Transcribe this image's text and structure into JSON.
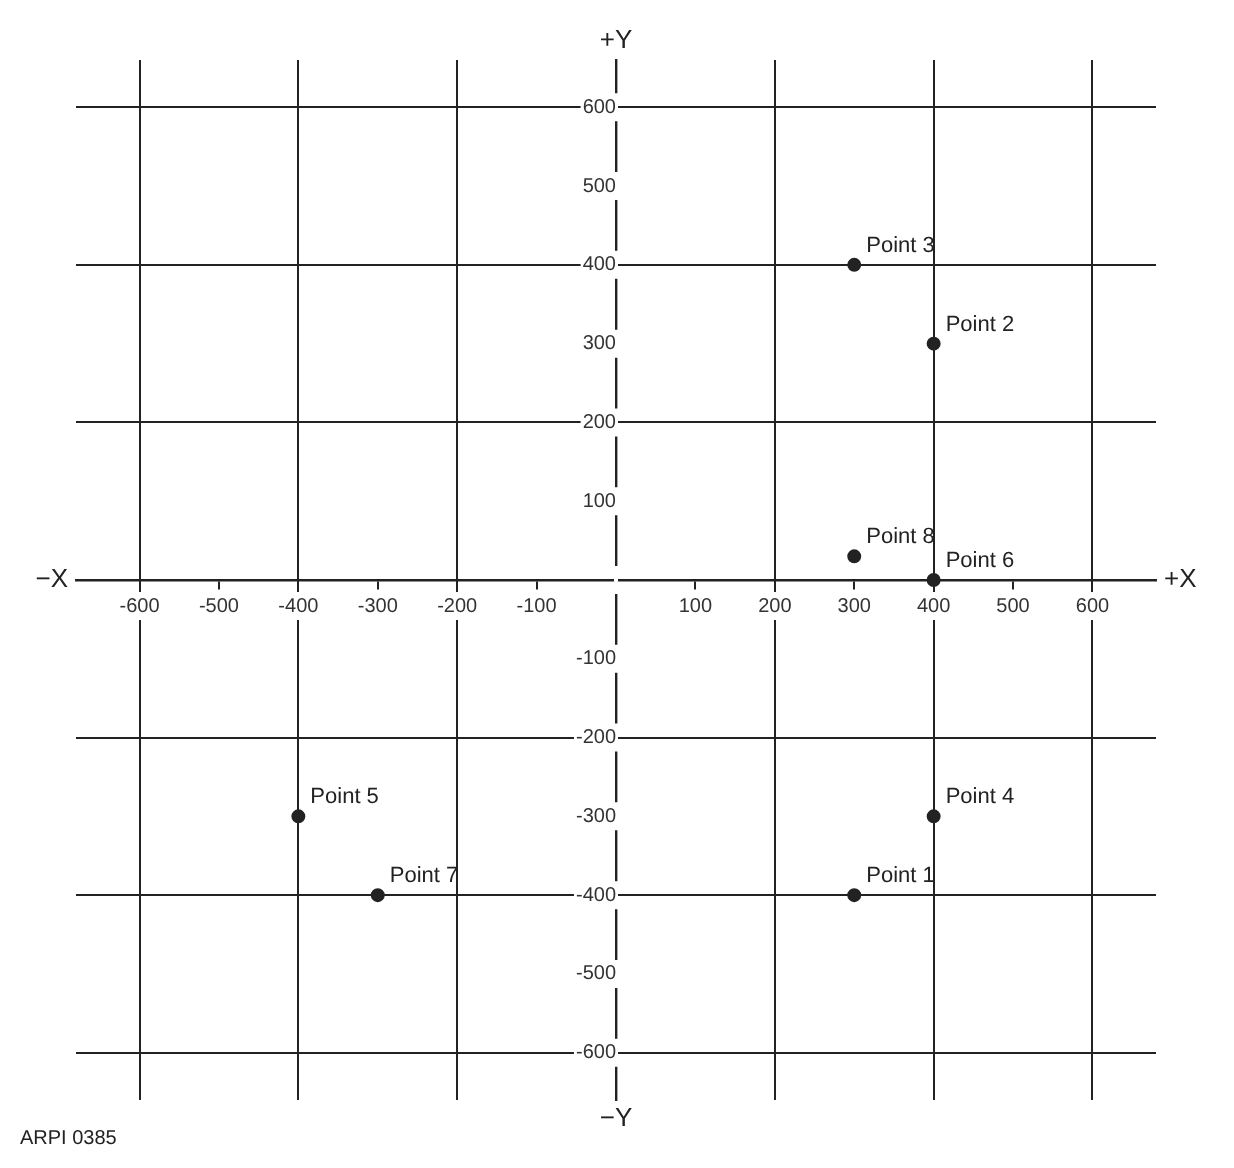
{
  "chart_data": {
    "type": "scatter",
    "xlabel": "+X",
    "ylabel": "+Y",
    "annotations": [
      "−X",
      "−Y",
      "ARPI 0385"
    ],
    "series": [
      {
        "color": "#222222",
        "x": [
          300,
          400,
          300,
          400,
          -400,
          400,
          -300,
          300
        ],
        "values": [
          -400,
          300,
          400,
          -300,
          -300,
          0,
          -400,
          30
        ],
        "value_labels": [
          "Point 1",
          "Point 2",
          "Point 3",
          "Point 4",
          "Point 5",
          "Point 6",
          "Point 7",
          "Point 8"
        ]
      }
    ],
    "xlim": [
      -680,
      680
    ],
    "ylim": [
      -660,
      660
    ],
    "xticks": [
      -600,
      -500,
      -400,
      -300,
      -200,
      -100,
      {
        "value": 0,
        "label": null
      },
      100,
      200,
      300,
      400,
      500,
      600
    ],
    "yticks": [
      -600,
      -500,
      -400,
      -300,
      -200,
      -100,
      {
        "value": 0,
        "label": null
      },
      100,
      200,
      300,
      400,
      500,
      600
    ],
    "grid": true,
    "marker": "circle",
    "legend": false
  }
}
